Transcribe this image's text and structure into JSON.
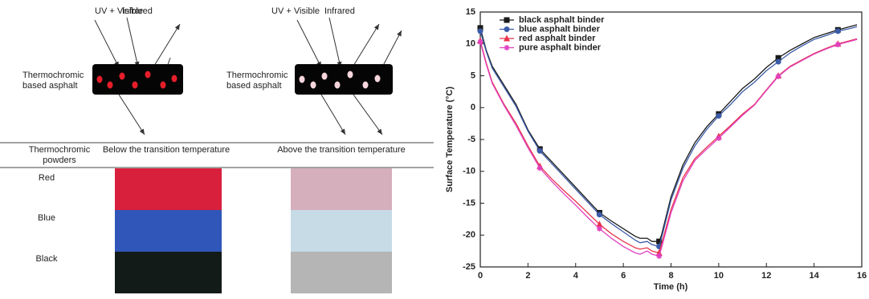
{
  "figure": {
    "diagram": [
      {
        "uv": "UV + Visible",
        "ir": "Infrared",
        "label": [
          "Thermochromic",
          "based asphalt"
        ]
      },
      {
        "uv": "UV + Visible",
        "ir": "Infrared",
        "label": [
          "Thermochromic",
          "based asphalt"
        ]
      }
    ],
    "table": {
      "header": [
        [
          "Thermochromic",
          "powders"
        ],
        "Below the transition temperature",
        "Above the transition temperature"
      ],
      "rows": [
        "Red",
        "Blue",
        "Black"
      ]
    }
  },
  "chart_data": {
    "type": "line",
    "x_label": "Time (h)",
    "y_label": "Surface Temperature (°C)",
    "x": [
      0,
      0.25,
      0.5,
      1,
      1.5,
      2,
      2.5,
      3,
      3.5,
      4,
      4.5,
      5,
      5.5,
      6,
      6.5,
      6.7,
      7,
      7.2,
      7.5,
      7.6,
      8,
      8.5,
      9,
      9.5,
      10,
      10.5,
      11,
      11.5,
      12,
      12.5,
      13,
      13.5,
      14,
      14.5,
      15,
      15.5,
      15.8
    ],
    "series": [
      {
        "name": "black  asphalt binder",
        "color": "#1a1a1a",
        "marker": "square",
        "values": [
          12.5,
          9,
          6.5,
          3.5,
          0.5,
          -3.5,
          -6.5,
          -8.5,
          -10.5,
          -12.5,
          -14.5,
          -16.5,
          -17.8,
          -19,
          -20.2,
          -20.5,
          -20.5,
          -21,
          -21,
          -20,
          -14,
          -9,
          -5.5,
          -3,
          -1,
          1,
          3,
          4.5,
          6.3,
          7.8,
          9,
          10,
          11,
          11.6,
          12.2,
          12.7,
          13
        ]
      },
      {
        "name": "blue asphalt binder",
        "color": "#3b5ba8",
        "marker": "circle",
        "values": [
          12,
          8.8,
          6.2,
          3.2,
          0.2,
          -3.7,
          -6.8,
          -8.8,
          -10.8,
          -12.8,
          -14.8,
          -16.8,
          -18.2,
          -19.5,
          -20.8,
          -21.2,
          -21,
          -21.5,
          -21.8,
          -20.5,
          -14.5,
          -9.5,
          -6,
          -3.4,
          -1.3,
          0.5,
          2.5,
          4,
          5.8,
          7.2,
          8.6,
          9.7,
          10.7,
          11.3,
          12,
          12.4,
          12.7
        ]
      },
      {
        "name": "red asphalt binder",
        "color": "#e8334a",
        "marker": "triangle",
        "values": [
          10.5,
          7,
          4,
          0.5,
          -2.5,
          -6,
          -9.2,
          -11.2,
          -13,
          -14.7,
          -16.5,
          -18.3,
          -19.8,
          -21,
          -22,
          -22.2,
          -22,
          -22.5,
          -22.8,
          -21.5,
          -16,
          -11,
          -8,
          -6.2,
          -4.5,
          -2.8,
          -1,
          0.5,
          2.8,
          5,
          6.5,
          7.5,
          8.5,
          9.3,
          10,
          10.5,
          10.8
        ]
      },
      {
        "name": "pure asphalt binder",
        "color": "#e040c0",
        "marker": "star",
        "values": [
          10.3,
          6.8,
          3.8,
          0.3,
          -2.8,
          -6.3,
          -9.5,
          -11.6,
          -13.5,
          -15.3,
          -17.2,
          -19,
          -20.5,
          -21.8,
          -22.8,
          -23,
          -22.5,
          -23,
          -23.3,
          -22,
          -16.5,
          -11.5,
          -8.3,
          -6.5,
          -4.8,
          -3,
          -1.2,
          0.4,
          2.7,
          4.9,
          6.4,
          7.4,
          8.4,
          9.2,
          9.9,
          10.4,
          10.7
        ]
      }
    ],
    "xlim": [
      0,
      16
    ],
    "xticks": [
      0,
      2,
      4,
      6,
      8,
      10,
      12,
      14,
      16
    ],
    "ylim": [
      -25,
      15
    ],
    "yticks": [
      -25,
      -20,
      -15,
      -10,
      -5,
      0,
      5,
      10,
      15
    ],
    "legend": "upper left"
  }
}
